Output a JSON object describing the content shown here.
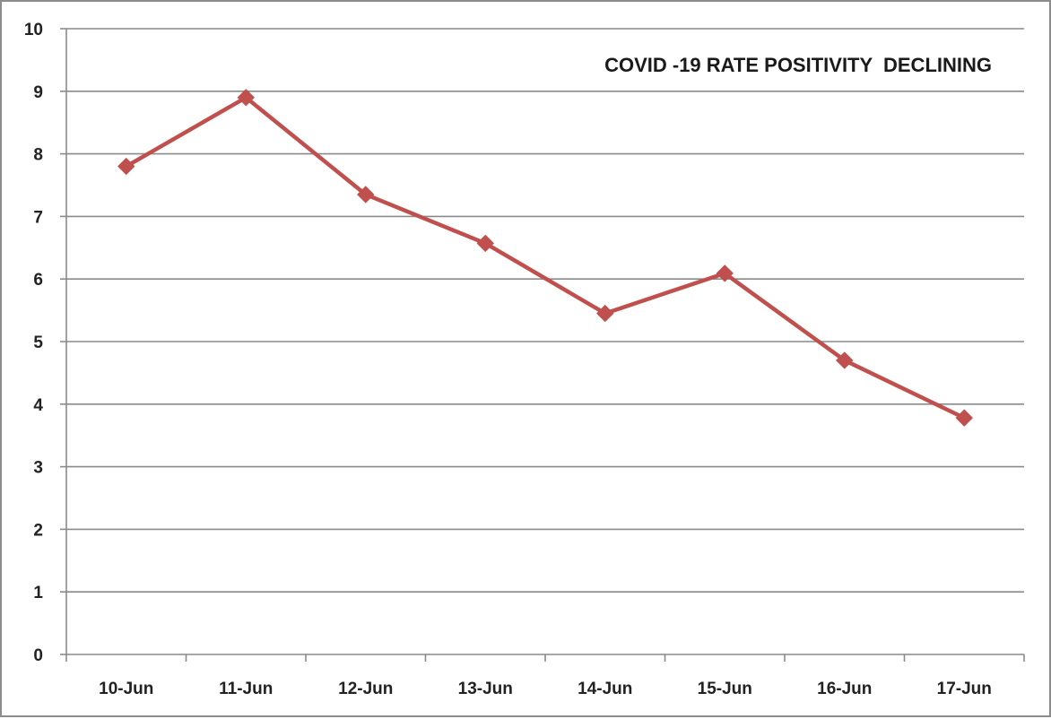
{
  "chart_data": {
    "type": "line",
    "title": "COVID -19 RATE POSITIVITY  DECLINING",
    "xlabel": "",
    "ylabel": "",
    "categories": [
      "10-Jun",
      "11-Jun",
      "12-Jun",
      "13-Jun",
      "14-Jun",
      "15-Jun",
      "16-Jun",
      "17-Jun"
    ],
    "series": [
      {
        "values": [
          7.8,
          8.9,
          7.35,
          6.57,
          5.45,
          6.09,
          4.7,
          3.78
        ],
        "color": "#c0504d",
        "marker": "diamond"
      }
    ],
    "ylim": [
      0,
      10
    ],
    "yticks": [
      0,
      1,
      2,
      3,
      4,
      5,
      6,
      7,
      8,
      9,
      10
    ],
    "grid": "horizontal",
    "legend": "none"
  }
}
